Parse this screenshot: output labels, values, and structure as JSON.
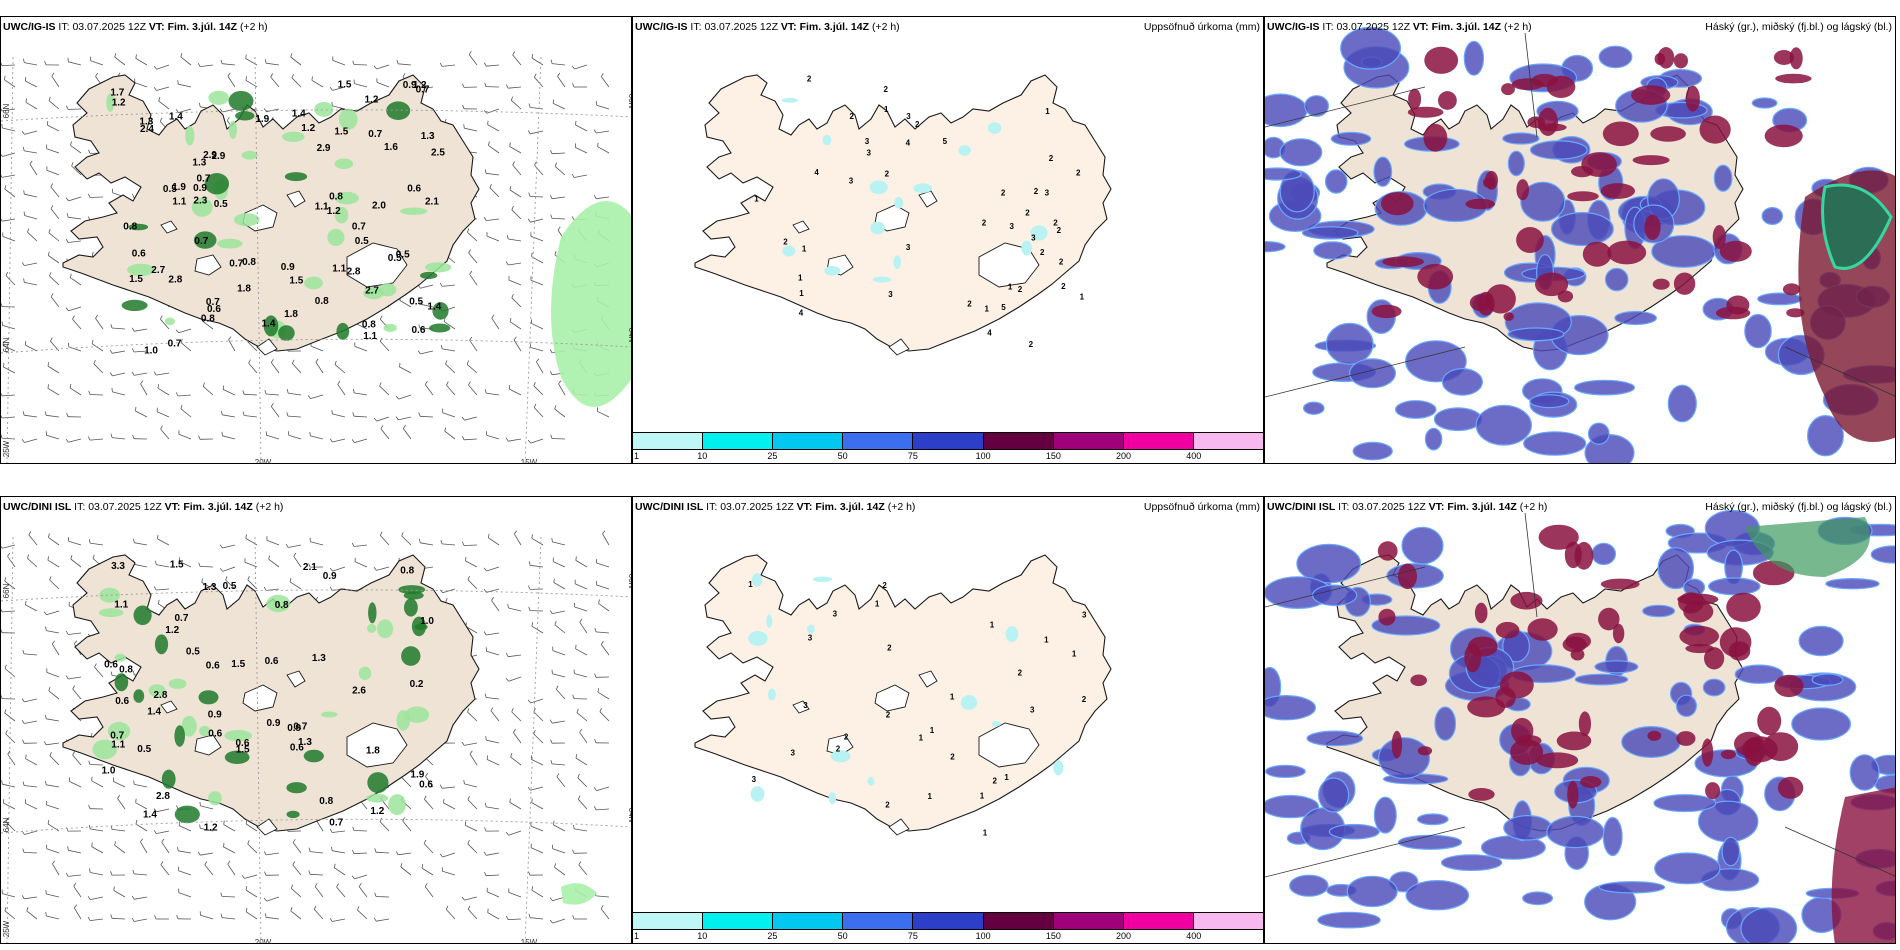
{
  "panels": [
    {
      "id": "ig-pressure",
      "model": "UWC/IG-IS",
      "it_label": "IT:",
      "it_value": "03.07.2025 12Z",
      "vt_label": "VT:",
      "vt_value": "Fim. 3.júl. 14Z",
      "lead": "(+2 h)",
      "right_title": ""
    },
    {
      "id": "ig-precip",
      "model": "UWC/IG-IS",
      "it_label": "IT:",
      "it_value": "03.07.2025 12Z",
      "vt_label": "VT:",
      "vt_value": "Fim. 3.júl. 14Z",
      "lead": "(+2 h)",
      "right_title": "Uppsöfnuð úrkoma (mm)"
    },
    {
      "id": "ig-cloud",
      "model": "UWC/IG-IS",
      "it_label": "IT:",
      "it_value": "03.07.2025 12Z",
      "vt_label": "VT:",
      "vt_value": "Fim. 3.júl. 14Z",
      "lead": "(+2 h)",
      "right_title": "Háský (gr.), miðský (fj.bl.) og lágský (bl.)"
    },
    {
      "id": "dini-pressure",
      "model": "UWC/DINI ISL",
      "it_label": "IT:",
      "it_value": "03.07.2025 12Z",
      "vt_label": "VT:",
      "vt_value": "Fim. 3.júl. 14Z",
      "lead": "(+2 h)",
      "right_title": ""
    },
    {
      "id": "dini-precip",
      "model": "UWC/DINI ISL",
      "it_label": "IT:",
      "it_value": "03.07.2025 12Z",
      "vt_label": "VT:",
      "vt_value": "Fim. 3.júl. 14Z",
      "lead": "(+2 h)",
      "right_title": "Uppsöfnuð úrkoma (mm)"
    },
    {
      "id": "dini-cloud",
      "model": "UWC/DINI ISL",
      "it_label": "IT:",
      "it_value": "03.07.2025 12Z",
      "vt_label": "VT:",
      "vt_value": "Fim. 3.júl. 14Z",
      "lead": "(+2 h)",
      "right_title": "Háský (gr.), miðský (fj.bl.) og lágský (bl.)"
    }
  ],
  "grid_labels": {
    "lat_66n": "66N",
    "lat_64n": "64N",
    "lon_25w": "25W",
    "lon_20w": "20W",
    "lon_15w": "15W"
  },
  "precip_colorbar": {
    "ticks": [
      "1",
      "10",
      "25",
      "50",
      "75",
      "100",
      "150",
      "200",
      "400"
    ],
    "colors": [
      "#bff7f7",
      "#00f0f0",
      "#00c8f0",
      "#3c6ff0",
      "#2b3fc8",
      "#640040",
      "#a0007a",
      "#f000a0",
      "#f8b8f0"
    ]
  },
  "ig_pressure_values": [
    "0.7",
    "1.4",
    "0.7",
    "0.5",
    "1.1",
    "2.9",
    "2.8",
    "1.2",
    "1.9",
    "1.3",
    "0.5",
    "2.9",
    "2.7",
    "0.7",
    "2.5",
    "1.1",
    "1.4",
    "0.9",
    "2.7",
    "1.3",
    "0.8",
    "0.8",
    "1.1",
    "1.2",
    "1.9",
    "0.7",
    "0.8",
    "1.2",
    "1.5",
    "0.5",
    "1.8",
    "1.1",
    "1.0",
    "2.8",
    "1.3",
    "0.7",
    "2.9",
    "2.4",
    "1.4",
    "0.6",
    "1.8",
    "1.5",
    "1.6",
    "0.7",
    "1.2",
    "0.9",
    "0.8",
    "1.5",
    "0.8",
    "0.7",
    "0.6",
    "0.8",
    "0.6",
    "1.7",
    "2.0",
    "0.5",
    "0.5",
    "1.4",
    "2.1",
    "0.7",
    "0.9",
    "1.2",
    "0.6",
    "2.3",
    "1.5",
    "0.5"
  ],
  "ig_precip_values": [
    "2",
    "3",
    "3",
    "3",
    "2",
    "3",
    "1",
    "2",
    "3",
    "2",
    "2",
    "3",
    "3",
    "1",
    "2",
    "4",
    "3",
    "4",
    "2",
    "2",
    "1",
    "1",
    "2",
    "2",
    "2",
    "1",
    "2",
    "4",
    "5",
    "2",
    "3",
    "2",
    "2",
    "2",
    "2",
    "4",
    "1",
    "1",
    "5",
    "2",
    "1",
    "2",
    "2",
    "1"
  ],
  "dini_pressure_values": [
    "1.3",
    "0.8",
    "0.8",
    "0.6",
    "0.9",
    "1.5",
    "2.6",
    "0.7",
    "0.6",
    "0.6",
    "2.8",
    "0.6",
    "0.5",
    "0.6",
    "1.8",
    "1.9",
    "1.3",
    "1.1",
    "1.2",
    "1.2",
    "0.7",
    "0.9",
    "1.5",
    "1.4",
    "3.3",
    "2.1",
    "0.8",
    "0.6",
    "1.4",
    "0.6",
    "0.2",
    "0.6",
    "0.5",
    "1.1",
    "0.9",
    "1.5",
    "0.7",
    "1.0",
    "1.2",
    "0.7",
    "2.8",
    "0.8",
    "1.0",
    "1.3",
    "0.9",
    "0.5"
  ],
  "dini_precip_values": [
    "1",
    "3",
    "2",
    "2",
    "2",
    "3",
    "2",
    "3",
    "1",
    "2",
    "1",
    "2",
    "1",
    "3",
    "1",
    "3",
    "3",
    "1",
    "1",
    "2",
    "1",
    "2",
    "1",
    "3",
    "1",
    "2",
    "2",
    "1",
    "1"
  ]
}
